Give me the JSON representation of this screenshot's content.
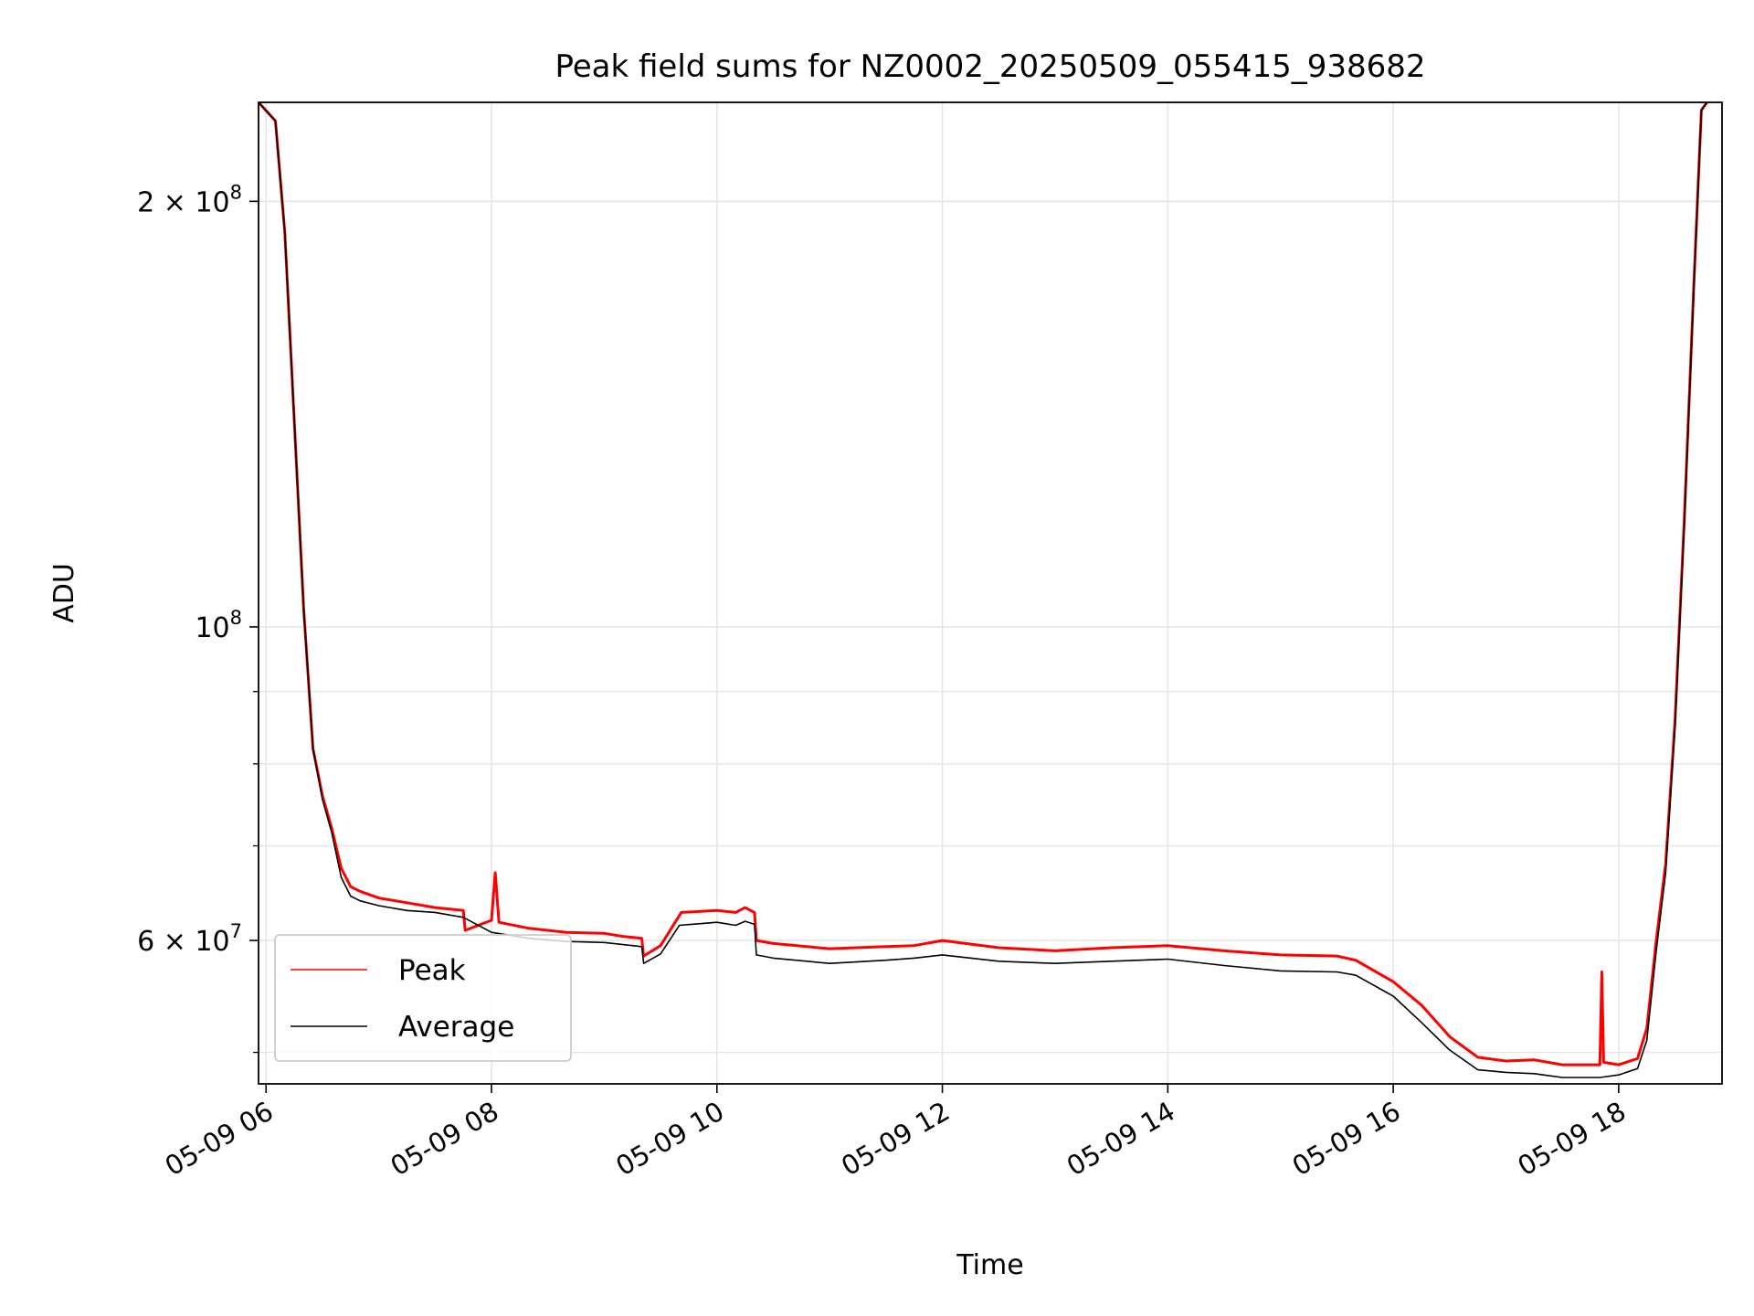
{
  "chart_data": {
    "type": "line",
    "title": "Peak field sums for NZ0002_20250509_055415_938682",
    "xlabel": "Time",
    "ylabel": "ADU",
    "x_scale": "time",
    "y_scale": "log",
    "xlim": [
      "2025-05-09 05:56",
      "2025-05-09 18:55"
    ],
    "ylim": [
      47500000,
      235000000
    ],
    "x_ticks": [
      {
        "value": "2025-05-09 06:00",
        "label": "05-09 06"
      },
      {
        "value": "2025-05-09 08:00",
        "label": "05-09 08"
      },
      {
        "value": "2025-05-09 10:00",
        "label": "05-09 10"
      },
      {
        "value": "2025-05-09 12:00",
        "label": "05-09 12"
      },
      {
        "value": "2025-05-09 14:00",
        "label": "05-09 14"
      },
      {
        "value": "2025-05-09 16:00",
        "label": "05-09 16"
      },
      {
        "value": "2025-05-09 18:00",
        "label": "05-09 18"
      }
    ],
    "y_major_ticks": [
      {
        "value": 200000000,
        "mantissa": "2",
        "base": "10",
        "exp": "8"
      },
      {
        "value": 100000000,
        "mantissa": "",
        "base": "10",
        "exp": "8"
      },
      {
        "value": 60000000,
        "mantissa": "6",
        "base": "10",
        "exp": "7"
      }
    ],
    "y_minor_ticks": [
      50000000,
      70000000,
      80000000,
      90000000
    ],
    "grid": true,
    "legend_position": "lower-left",
    "series": [
      {
        "name": "Peak",
        "color": "#ff0000",
        "x": [
          "2025-05-09 05:56",
          "2025-05-09 06:05",
          "2025-05-09 06:10",
          "2025-05-09 06:15",
          "2025-05-09 06:20",
          "2025-05-09 06:25",
          "2025-05-09 06:30",
          "2025-05-09 06:35",
          "2025-05-09 06:40",
          "2025-05-09 06:45",
          "2025-05-09 06:50",
          "2025-05-09 07:00",
          "2025-05-09 07:15",
          "2025-05-09 07:30",
          "2025-05-09 07:45",
          "2025-05-09 07:46",
          "2025-05-09 08:00",
          "2025-05-09 08:02",
          "2025-05-09 08:04",
          "2025-05-09 08:20",
          "2025-05-09 08:40",
          "2025-05-09 09:00",
          "2025-05-09 09:10",
          "2025-05-09 09:20",
          "2025-05-09 09:21",
          "2025-05-09 09:30",
          "2025-05-09 09:40",
          "2025-05-09 09:41",
          "2025-05-09 10:00",
          "2025-05-09 10:10",
          "2025-05-09 10:15",
          "2025-05-09 10:20",
          "2025-05-09 10:21",
          "2025-05-09 10:30",
          "2025-05-09 11:00",
          "2025-05-09 11:30",
          "2025-05-09 11:45",
          "2025-05-09 12:00",
          "2025-05-09 12:30",
          "2025-05-09 13:00",
          "2025-05-09 13:30",
          "2025-05-09 14:00",
          "2025-05-09 14:30",
          "2025-05-09 15:00",
          "2025-05-09 15:30",
          "2025-05-09 15:40",
          "2025-05-09 16:00",
          "2025-05-09 16:15",
          "2025-05-09 16:30",
          "2025-05-09 16:45",
          "2025-05-09 17:00",
          "2025-05-09 17:15",
          "2025-05-09 17:30",
          "2025-05-09 17:50",
          "2025-05-09 17:51",
          "2025-05-09 17:52",
          "2025-05-09 18:00",
          "2025-05-09 18:10",
          "2025-05-09 18:15",
          "2025-05-09 18:20",
          "2025-05-09 18:25",
          "2025-05-09 18:30",
          "2025-05-09 18:35",
          "2025-05-09 18:40",
          "2025-05-09 18:44",
          "2025-05-09 18:47"
        ],
        "values": [
          235000000,
          228000000,
          190000000,
          140000000,
          103000000,
          82000000,
          76000000,
          72000000,
          67500000,
          65500000,
          65000000,
          64300000,
          63800000,
          63300000,
          63000000,
          61000000,
          62000000,
          67000000,
          61800000,
          61200000,
          60800000,
          60700000,
          60400000,
          60200000,
          58500000,
          59500000,
          62500000,
          62800000,
          63000000,
          62800000,
          63300000,
          62800000,
          60000000,
          59700000,
          59200000,
          59400000,
          59500000,
          60000000,
          59300000,
          59000000,
          59300000,
          59500000,
          59000000,
          58600000,
          58500000,
          58100000,
          56100000,
          54000000,
          51300000,
          49600000,
          49300000,
          49400000,
          49000000,
          49000000,
          57000000,
          49200000,
          49000000,
          49500000,
          52000000,
          60000000,
          68000000,
          86000000,
          120000000,
          175000000,
          232000000,
          235000000
        ]
      },
      {
        "name": "Average",
        "color": "#000000",
        "x": [
          "2025-05-09 05:56",
          "2025-05-09 06:05",
          "2025-05-09 06:10",
          "2025-05-09 06:15",
          "2025-05-09 06:20",
          "2025-05-09 06:25",
          "2025-05-09 06:30",
          "2025-05-09 06:35",
          "2025-05-09 06:40",
          "2025-05-09 06:45",
          "2025-05-09 06:50",
          "2025-05-09 07:00",
          "2025-05-09 07:15",
          "2025-05-09 07:30",
          "2025-05-09 07:45",
          "2025-05-09 08:00",
          "2025-05-09 08:20",
          "2025-05-09 08:40",
          "2025-05-09 09:00",
          "2025-05-09 09:10",
          "2025-05-09 09:20",
          "2025-05-09 09:21",
          "2025-05-09 09:30",
          "2025-05-09 09:40",
          "2025-05-09 10:00",
          "2025-05-09 10:10",
          "2025-05-09 10:15",
          "2025-05-09 10:20",
          "2025-05-09 10:21",
          "2025-05-09 10:30",
          "2025-05-09 11:00",
          "2025-05-09 11:30",
          "2025-05-09 11:45",
          "2025-05-09 12:00",
          "2025-05-09 12:30",
          "2025-05-09 13:00",
          "2025-05-09 13:30",
          "2025-05-09 14:00",
          "2025-05-09 14:30",
          "2025-05-09 15:00",
          "2025-05-09 15:30",
          "2025-05-09 15:40",
          "2025-05-09 16:00",
          "2025-05-09 16:15",
          "2025-05-09 16:30",
          "2025-05-09 16:45",
          "2025-05-09 17:00",
          "2025-05-09 17:15",
          "2025-05-09 17:30",
          "2025-05-09 17:50",
          "2025-05-09 18:00",
          "2025-05-09 18:10",
          "2025-05-09 18:15",
          "2025-05-09 18:20",
          "2025-05-09 18:25",
          "2025-05-09 18:30",
          "2025-05-09 18:35",
          "2025-05-09 18:40",
          "2025-05-09 18:44",
          "2025-05-09 18:47"
        ],
        "values": [
          235000000,
          228000000,
          190000000,
          140000000,
          103000000,
          82000000,
          75500000,
          71500000,
          66500000,
          64500000,
          64000000,
          63500000,
          63000000,
          62800000,
          62300000,
          60800000,
          60200000,
          59900000,
          59800000,
          59600000,
          59400000,
          57800000,
          58700000,
          61500000,
          61800000,
          61500000,
          61900000,
          61600000,
          58600000,
          58300000,
          57800000,
          58100000,
          58300000,
          58600000,
          58000000,
          57800000,
          58000000,
          58200000,
          57600000,
          57100000,
          57000000,
          56700000,
          54800000,
          52500000,
          50200000,
          48600000,
          48400000,
          48300000,
          48000000,
          48000000,
          48200000,
          48700000,
          51000000,
          59000000,
          67000000,
          85000000,
          119000000,
          174000000,
          232000000,
          235000000
        ]
      }
    ]
  }
}
